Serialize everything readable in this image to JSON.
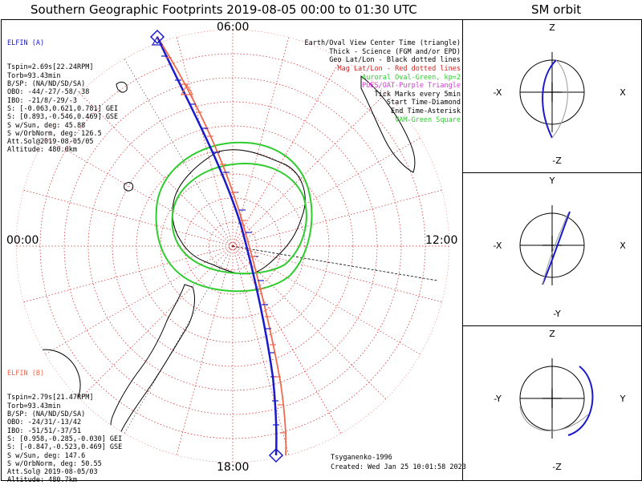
{
  "header": {
    "title": "Southern Geographic Footprints 2019-08-05 00:00 to 01:30 UTC",
    "sm_title": "SM orbit"
  },
  "colors": {
    "elfin_a": "#1a1acc",
    "elfin_b": "#f06a4e",
    "geo_grid": "#d42020",
    "oval": "#2ecc2e",
    "poes": "#d040d0",
    "coast": "#000000"
  },
  "hour_labels": {
    "top": "06:00",
    "left": "00:00",
    "right": "12:00",
    "bottom": "18:00"
  },
  "elfin_a": {
    "name": "ELFIN (A)",
    "lines": [
      "Tspin=2.69s[22.24RPM]",
      "Torb=93.43min",
      "B/SP: (NA/ND/SD/SA)",
      "OBO: -44/-27/-58/-38",
      "IBO: -21/8/-29/-3",
      "S: [-0.063,0.621,0.781] GEI",
      "S: [0.893,-0.546,0.469] GSE",
      "S w/Sun, deg: 45.88",
      "S w/OrbNorm, deg: 126.5",
      "Att.Sol@2019-08-05/05",
      "Altitude: 480.0km"
    ]
  },
  "elfin_b": {
    "name": "ELFIN (B)",
    "lines": [
      "Tspin=2.79s[21.47RPM]",
      "Torb=93.43min",
      "B/SP: (NA/ND/SD/SA)",
      "OBO: -24/31/-13/42",
      "IBO: -51/51/-37/51",
      "S: [0.958,-0.285,-0.030] GEI",
      "S: [-0.847,-0.523,0.469] GSE",
      "S w/Sun, deg: 147.6",
      "S w/OrbNorm, deg: 50.55",
      "Att.Sol@ 2019-08-05/03",
      "Altitude: 480.7km"
    ]
  },
  "legend": {
    "lines": [
      "Earth/Oval View Center Time (triangle)",
      "Thick - Science (FGM and/or EPD)",
      "Geo Lat/Lon - Black dotted lines",
      "Mag Lat/Lon - Red dotted lines",
      "Auroral Oval-Green, kp=2",
      "POES/OAT-Purple Triangle",
      "Tick Marks every 5min",
      "Start Time-Diamond",
      "End Time-Asterisk",
      "VAM-Green Square"
    ]
  },
  "credits": {
    "model": "Tsyganenko-1996",
    "created": "Created: Wed Jan 25 10:01:58 2023"
  },
  "sm_panels": [
    {
      "id": "xz",
      "top": "Z",
      "bottom": "-Z",
      "left": "-X",
      "right": "X"
    },
    {
      "id": "xy",
      "top": "Y",
      "bottom": "-Y",
      "left": "-X",
      "right": "X"
    },
    {
      "id": "yz",
      "top": "Z",
      "bottom": "-Z",
      "left": "-Y",
      "right": "Y"
    }
  ],
  "chart_data": {
    "type": "polar footprint map",
    "projection": "south polar stereographic",
    "latitude_rings_deg": [
      -80,
      -70,
      -60,
      -50,
      -40,
      -30,
      -20,
      -10
    ],
    "mlt_hours_labeled": [
      "00:00",
      "06:00",
      "12:00",
      "18:00"
    ],
    "time_range_utc": [
      "2019-08-05 00:00",
      "2019-08-05 01:30"
    ],
    "tick_interval_min": 5,
    "series": [
      {
        "name": "ELFIN (A)",
        "color": "#1a1acc"
      },
      {
        "name": "ELFIN (B)",
        "color": "#f06a4e"
      }
    ],
    "auroral_oval_kp": 2
  }
}
